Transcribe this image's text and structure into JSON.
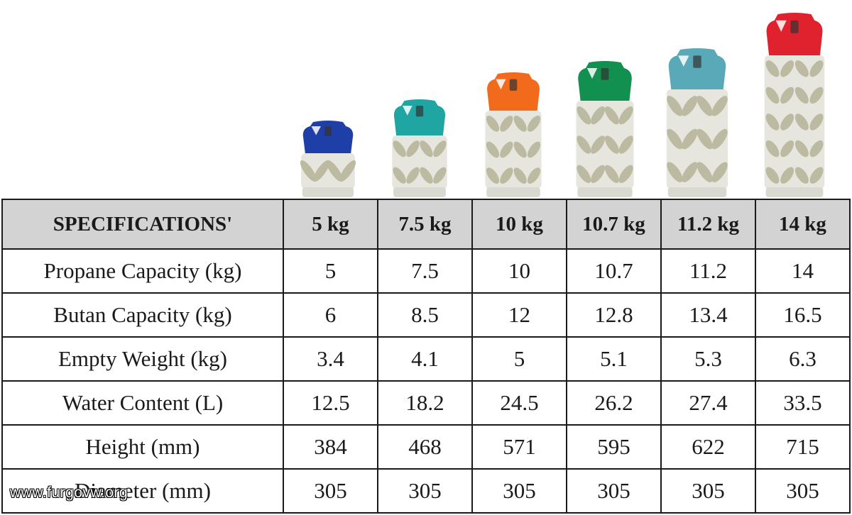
{
  "cylinders": [
    {
      "size": "5 kg",
      "cap_color": "#1f3fa8"
    },
    {
      "size": "7.5 kg",
      "cap_color": "#1fa6a3"
    },
    {
      "size": "10 kg",
      "cap_color": "#f26a1b"
    },
    {
      "size": "10.7 kg",
      "cap_color": "#11904f"
    },
    {
      "size": "11.2 kg",
      "cap_color": "#5aa9b8"
    },
    {
      "size": "14 kg",
      "cap_color": "#e0222e"
    }
  ],
  "table": {
    "header": [
      "SPECIFICATIONS'",
      "5 kg",
      "7.5 kg",
      "10 kg",
      "10.7 kg",
      "11.2 kg",
      "14 kg"
    ],
    "rows": [
      {
        "label": "Propane Capacity (kg)",
        "values": [
          "5",
          "7.5",
          "10",
          "10.7",
          "11.2",
          "14"
        ]
      },
      {
        "label": "Butan Capacity (kg)",
        "values": [
          "6",
          "8.5",
          "12",
          "12.8",
          "13.4",
          "16.5"
        ]
      },
      {
        "label": "Empty Weight (kg)",
        "values": [
          "3.4",
          "4.1",
          "5",
          "5.1",
          "5.3",
          "6.3"
        ]
      },
      {
        "label": "Water Content (L)",
        "values": [
          "12.5",
          "18.2",
          "24.5",
          "26.2",
          "27.4",
          "33.5"
        ]
      },
      {
        "label": "Height (mm)",
        "values": [
          "384",
          "468",
          "571",
          "595",
          "622",
          "715"
        ]
      },
      {
        "label": "Diameter (mm)",
        "values": [
          "305",
          "305",
          "305",
          "305",
          "305",
          "305"
        ]
      }
    ]
  },
  "watermark": "www.furgovw.org",
  "colors": {
    "header_bg": "#d3d3d3",
    "border": "#1a1a1a",
    "cylinder_body": "#e6e6df",
    "cylinder_lattice": "#bdbaa2"
  }
}
